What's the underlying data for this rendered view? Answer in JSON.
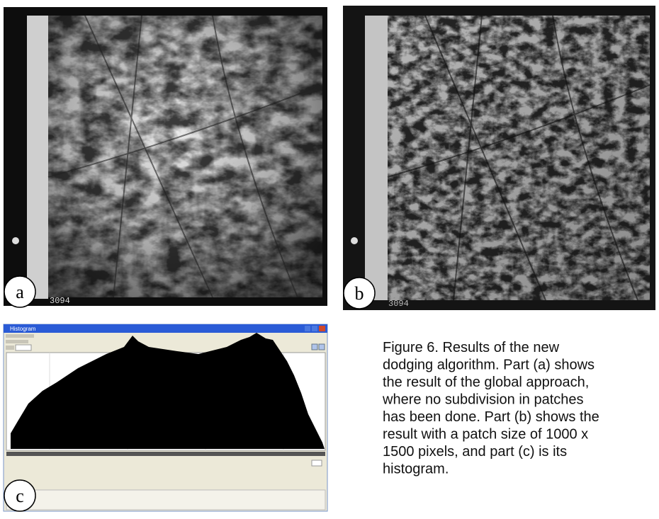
{
  "figure": {
    "panels": [
      {
        "label": "a",
        "frame_number": "3094"
      },
      {
        "label": "b",
        "frame_number": "3094"
      },
      {
        "label": "c",
        "window_title": "Histogram"
      }
    ],
    "caption_lines": [
      "Figure 6. Results of the new",
      "dodging algorithm. Part (a) shows",
      "the result of the global approach,",
      "where no subdivision in patches",
      "has been done. Part (b) shows the",
      "result with a patch size of 1000 x",
      "1500 pixels, and part (c) is its",
      "histogram."
    ]
  }
}
